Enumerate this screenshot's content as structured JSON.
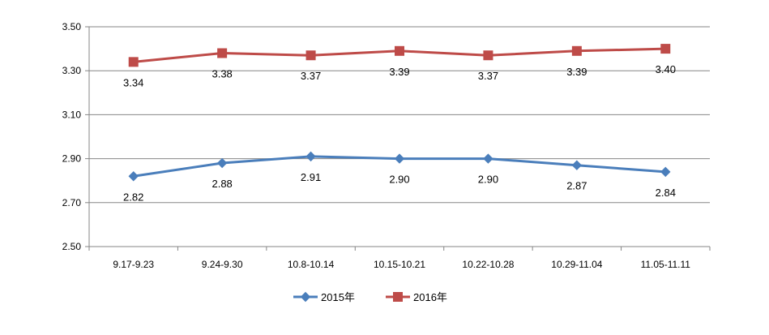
{
  "chart_data": {
    "type": "line",
    "title": "",
    "xlabel": "",
    "ylabel": "",
    "categories": [
      "9.17-9.23",
      "9.24-9.30",
      "10.8-10.14",
      "10.15-10.21",
      "10.22-10.28",
      "10.29-11.04",
      "11.05-11.11"
    ],
    "ylim": [
      2.5,
      3.5
    ],
    "yticks": [
      "2.50",
      "2.70",
      "2.90",
      "3.10",
      "3.30",
      "3.50"
    ],
    "grid": true,
    "legend_position": "bottom",
    "series": [
      {
        "name": "2015年",
        "color": "#4a7ebb",
        "marker": "diamond",
        "values": [
          2.82,
          2.88,
          2.91,
          2.9,
          2.9,
          2.87,
          2.84
        ],
        "labels": [
          "2.82",
          "2.88",
          "2.91",
          "2.90",
          "2.90",
          "2.87",
          "2.84"
        ]
      },
      {
        "name": "2016年",
        "color": "#be4b48",
        "marker": "square",
        "values": [
          3.34,
          3.38,
          3.37,
          3.39,
          3.37,
          3.39,
          3.4
        ],
        "labels": [
          "3.34",
          "3.38",
          "3.37",
          "3.39",
          "3.37",
          "3.39",
          "3.40"
        ]
      }
    ]
  }
}
